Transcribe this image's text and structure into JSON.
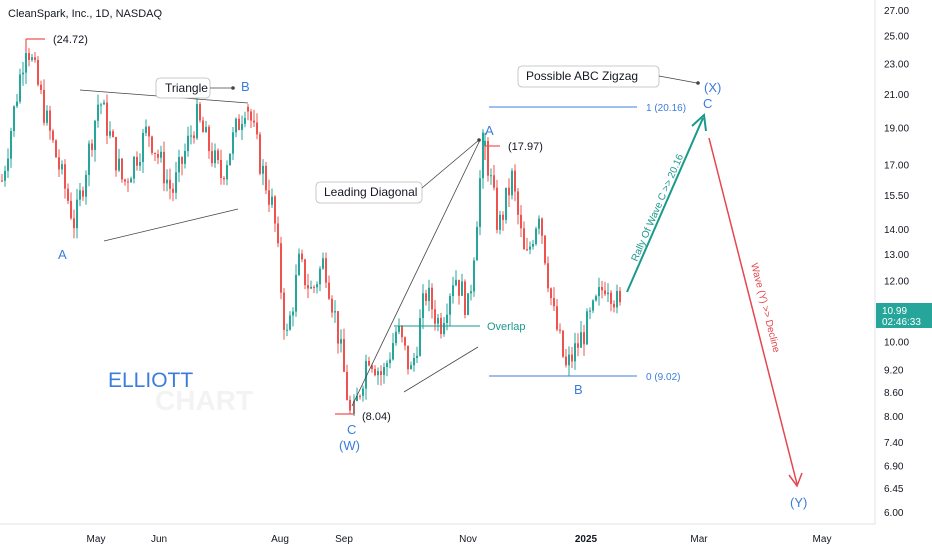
{
  "header": {
    "title": "CleanSpark, Inc., 1D, NASDAQ"
  },
  "watermark": {
    "line1": "ELLIOTT",
    "line2": "CHART"
  },
  "price_tag": {
    "price": "10.99",
    "countdown": "02:46:33",
    "color": "#26a69a"
  },
  "colors": {
    "up": "#26a69a",
    "down": "#ef5350",
    "blue": "#3b7ddd",
    "teal": "#1a9a8c",
    "red": "#e5464f"
  },
  "labels": {
    "high": "(24.72)",
    "triangle": "Triangle",
    "triangle_a": "A",
    "triangle_b": "B",
    "w_c": "C",
    "w_w": "(W)",
    "low": "(8.04)",
    "leading_diagonal": "Leading Diagonal",
    "diag_a": "A",
    "diag_high": "(17.97)",
    "overlap": "Overlap",
    "b_label": "B",
    "fib_0": "0 (9.02)",
    "fib_1": "1 (20.16)",
    "zigzag": "Possible ABC Zigzag",
    "x_label": "(X)",
    "x_c": "C",
    "rally": "Rally Of Wave C >> 20.16",
    "decline": "Wave (Y) >> Decline",
    "y_label": "(Y)"
  },
  "chart_data": {
    "type": "candlestick",
    "title": "CleanSpark, Inc., 1D, NASDAQ",
    "y_scale": "log",
    "ylim": [
      5.6,
      28.2
    ],
    "y_ticks": [
      "27.00",
      "25.00",
      "23.00",
      "21.00",
      "19.00",
      "17.00",
      "15.50",
      "14.00",
      "13.00",
      "12.00",
      "11.00",
      "10.00",
      "9.20",
      "8.60",
      "8.00",
      "7.40",
      "6.90",
      "6.45",
      "6.00"
    ],
    "x_ticks": [
      "May",
      "Jun",
      "Aug",
      "Sep",
      "Nov",
      "2025",
      "Mar",
      "May"
    ],
    "key_levels": [
      {
        "label": "(24.72)",
        "value": 24.72
      },
      {
        "label": "(17.97)",
        "value": 17.97
      },
      {
        "label": "(8.04)",
        "value": 8.04
      },
      {
        "label": "1 (20.16)",
        "value": 20.16
      },
      {
        "label": "0 (9.02)",
        "value": 9.02
      }
    ],
    "series": [
      {
        "segment": "Apr-Jun",
        "close_path": [
          16.2,
          24.7,
          18.5,
          14.2,
          20.8,
          16.0,
          18.9,
          15.6,
          19.6,
          16.4,
          20.4
        ]
      },
      {
        "segment": "Jul-Sep",
        "close_path": [
          20.2,
          17.0,
          14.8,
          10.0,
          12.6,
          11.6,
          12.8,
          10.4,
          8.04
        ]
      },
      {
        "segment": "Sep-Nov",
        "close_path": [
          8.04,
          9.7,
          9.0,
          10.4,
          9.1,
          11.6,
          10.5,
          12.3,
          11.0,
          17.97
        ]
      },
      {
        "segment": "Nov-Jan",
        "close_path": [
          17.97,
          14.0,
          16.3,
          12.6,
          14.9,
          11.0,
          9.2,
          10.0,
          10.9,
          12.1,
          10.99
        ]
      }
    ],
    "last_price": 10.99,
    "projection": {
      "target": 20.16,
      "then": "decline"
    },
    "grid": false,
    "legend": "none"
  }
}
